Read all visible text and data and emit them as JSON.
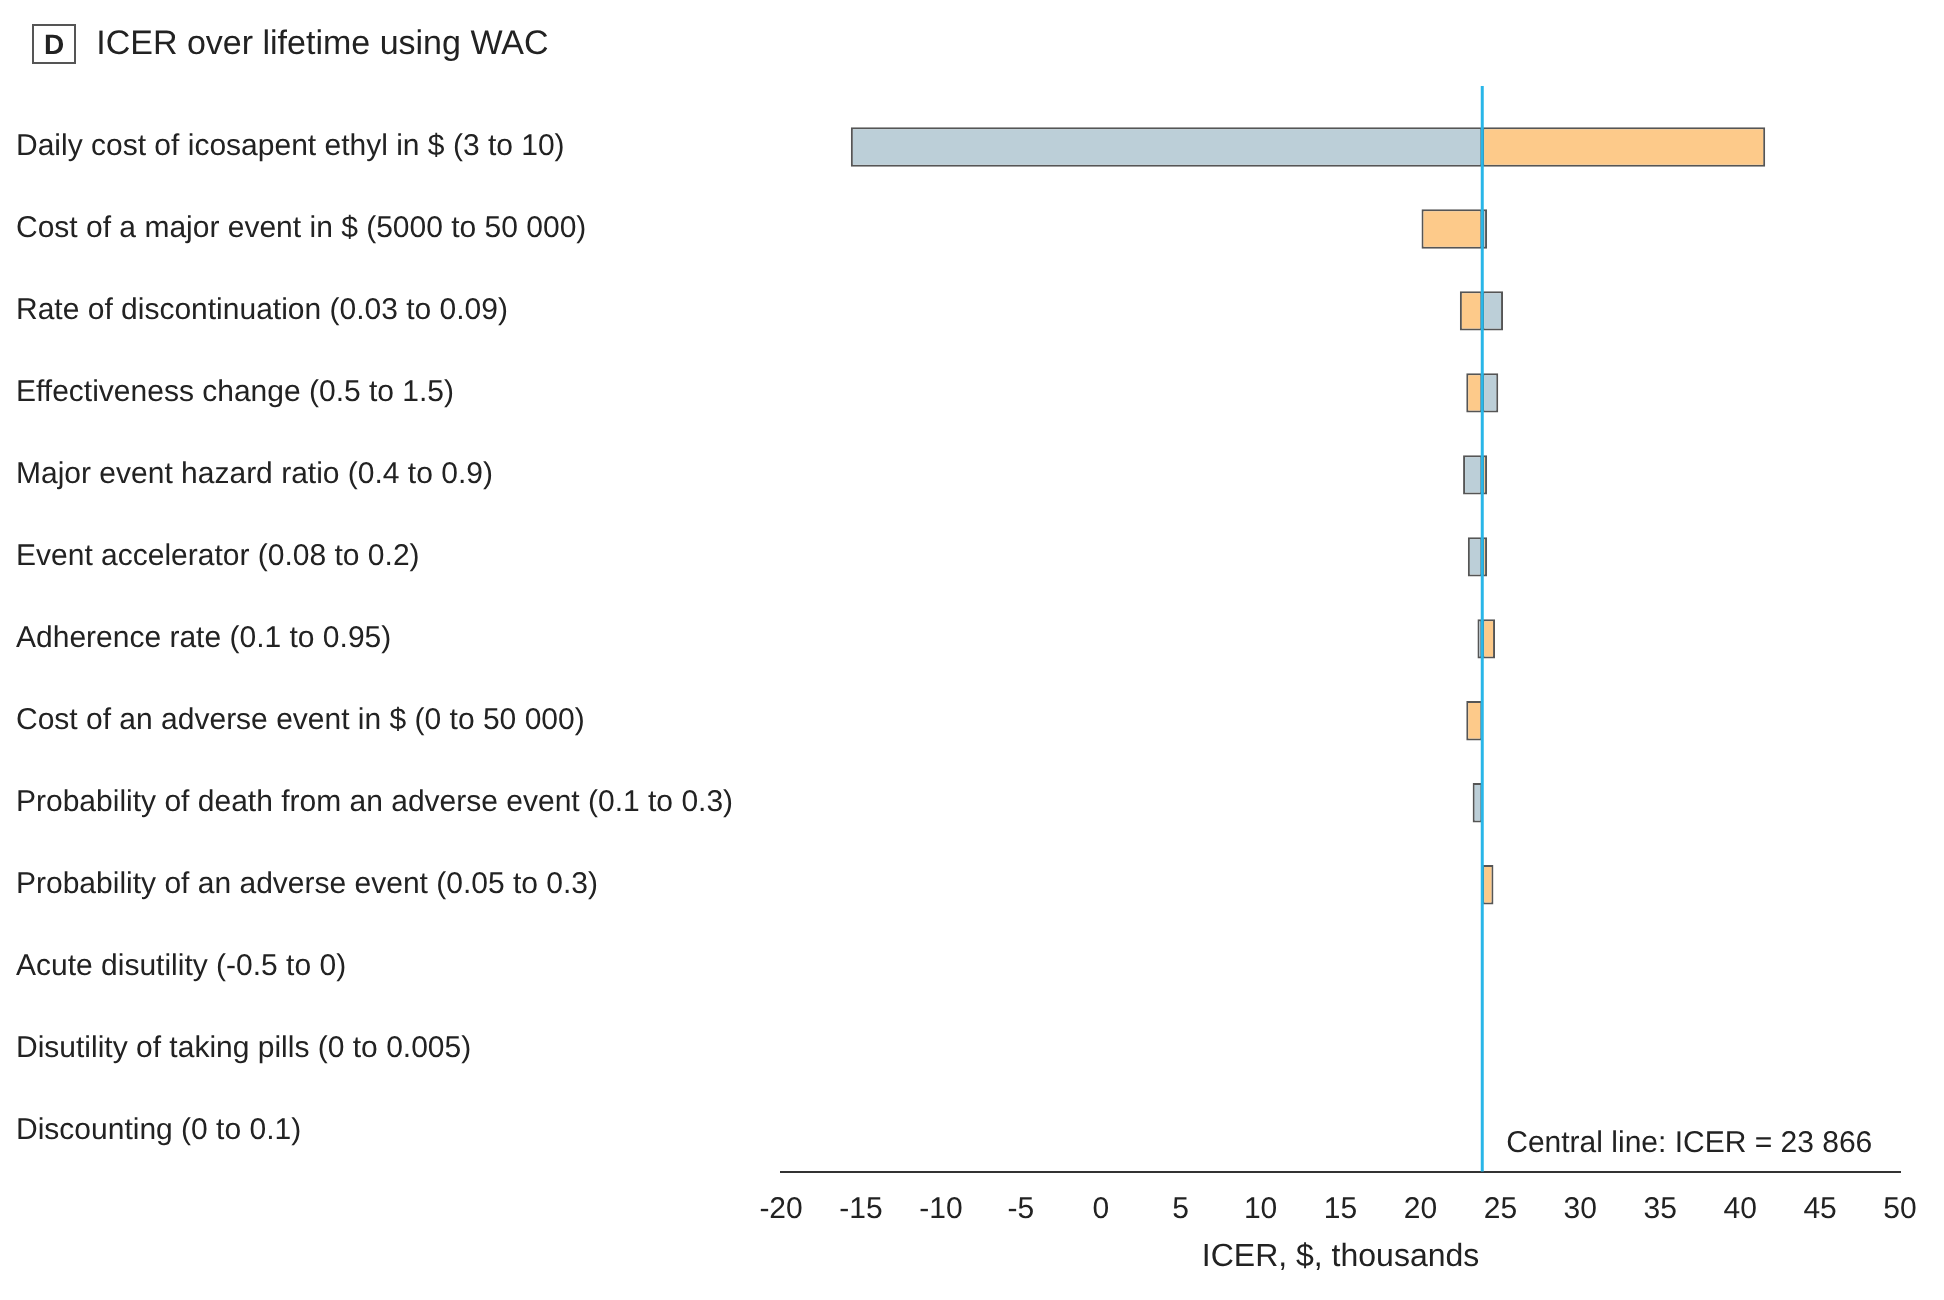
{
  "chart_data": {
    "type": "bar",
    "orientation": "horizontal",
    "title": "ICER over lifetime using WAC",
    "xlabel": "ICER, $, thousands",
    "annotations": [
      "D"
    ],
    "categories": [
      "Daily cost of icosapent ethyl in $ (3 to 10)",
      "Cost of a major event in $ (5000 to 50 000)",
      "Rate of discontinuation (0.03 to 0.09)",
      "Effectiveness change (0.5 to 1.5)",
      "Major event hazard ratio (0.4 to 0.9)",
      "Event accelerator (0.08 to 0.2)",
      "Adherence rate (0.1 to 0.95)",
      "Cost of an adverse event in $ (0 to 50 000)",
      "Probability of death from an adverse event (0.1 to 0.3)",
      "Probability of an adverse event (0.05 to 0.3)",
      "Acute disutility (-0.5 to 0)",
      "Disutility of taking pills (0 to 0.005)",
      "Discounting (0 to 0.1)"
    ],
    "series": [
      {
        "color": "#bccfd8",
        "base": [
          23.866,
          23.866,
          23.866,
          23.866,
          23.866,
          23.866,
          23.866,
          null,
          23.866,
          null,
          null,
          null,
          null
        ],
        "values": [
          -39.5,
          0.3,
          1.3,
          1.0,
          -1.2,
          -0.9,
          -0.3,
          null,
          -0.6,
          null,
          null,
          null,
          null
        ]
      },
      {
        "color": "#fdca8a",
        "base": [
          23.866,
          23.866,
          23.866,
          23.866,
          23.866,
          23.866,
          23.866,
          23.866,
          null,
          23.866,
          null,
          null,
          null
        ],
        "values": [
          17.7,
          -3.8,
          -1.4,
          -1.0,
          0.3,
          0.3,
          0.8,
          -1.0,
          null,
          0.7,
          null,
          null,
          null
        ]
      }
    ],
    "xlim": [
      -20,
      50
    ],
    "xticks": [
      -20,
      -15,
      -10,
      -5,
      0,
      5,
      10,
      15,
      20,
      25,
      30,
      35,
      40,
      45,
      50
    ],
    "ref_lines": [
      {
        "axis": "x",
        "value": 23.866,
        "label": "Central line: ICER = 23 866",
        "color": "#29b6e8"
      }
    ],
    "grid": false,
    "legend": false
  }
}
